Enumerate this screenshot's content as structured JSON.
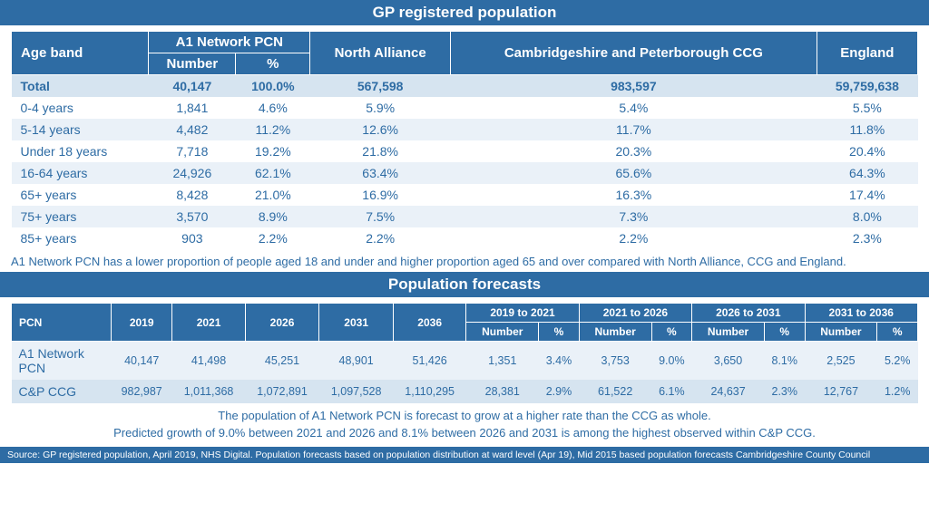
{
  "colors": {
    "primary": "#2e6ca4",
    "row_light": "#eaf1f8",
    "row_dark": "#d6e4f0",
    "white": "#ffffff",
    "text": "#2e6ca4"
  },
  "table1": {
    "title": "GP registered population",
    "headers": {
      "ageband": "Age band",
      "a1": "A1 Network PCN",
      "a1_number": "Number",
      "a1_pct": "%",
      "north": "North Alliance",
      "ccg": "Cambridgeshire and Peterborough CCG",
      "england": "England"
    },
    "rows": [
      {
        "label": "Total",
        "num": "40,147",
        "pct": "100.0%",
        "north": "567,598",
        "ccg": "983,597",
        "eng": "59,759,638",
        "total": true
      },
      {
        "label": "0-4 years",
        "num": "1,841",
        "pct": "4.6%",
        "north": "5.9%",
        "ccg": "5.4%",
        "eng": "5.5%"
      },
      {
        "label": "5-14 years",
        "num": "4,482",
        "pct": "11.2%",
        "north": "12.6%",
        "ccg": "11.7%",
        "eng": "11.8%"
      },
      {
        "label": "Under 18 years",
        "num": "7,718",
        "pct": "19.2%",
        "north": "21.8%",
        "ccg": "20.3%",
        "eng": "20.4%"
      },
      {
        "label": "16-64 years",
        "num": "24,926",
        "pct": "62.1%",
        "north": "63.4%",
        "ccg": "65.6%",
        "eng": "64.3%"
      },
      {
        "label": "65+ years",
        "num": "8,428",
        "pct": "21.0%",
        "north": "16.9%",
        "ccg": "16.3%",
        "eng": "17.4%"
      },
      {
        "label": "75+ years",
        "num": "3,570",
        "pct": "8.9%",
        "north": "7.5%",
        "ccg": "7.3%",
        "eng": "8.0%"
      },
      {
        "label": "85+ years",
        "num": "903",
        "pct": "2.2%",
        "north": "2.2%",
        "ccg": "2.2%",
        "eng": "2.3%"
      }
    ],
    "caption": "A1 Network PCN has a lower proportion of people aged 18 and under and higher proportion aged 65 and over compared with North Alliance, CCG and England."
  },
  "table2": {
    "title": "Population forecasts",
    "headers": {
      "pcn": "PCN",
      "y2019": "2019",
      "y2021": "2021",
      "y2026": "2026",
      "y2031": "2031",
      "y2036": "2036",
      "p1": "2019 to 2021",
      "p2": "2021 to 2026",
      "p3": "2026 to 2031",
      "p4": "2031 to 2036",
      "num": "Number",
      "pct": "%"
    },
    "rows": [
      {
        "label": "A1 Network PCN",
        "y19": "40,147",
        "y21": "41,498",
        "y26": "45,251",
        "y31": "48,901",
        "y36": "51,426",
        "p1n": "1,351",
        "p1p": "3.4%",
        "p2n": "3,753",
        "p2p": "9.0%",
        "p3n": "3,650",
        "p3p": "8.1%",
        "p4n": "2,525",
        "p4p": "5.2%"
      },
      {
        "label": "C&P CCG",
        "y19": "982,987",
        "y21": "1,011,368",
        "y26": "1,072,891",
        "y31": "1,097,528",
        "y36": "1,110,295",
        "p1n": "28,381",
        "p1p": "2.9%",
        "p2n": "61,522",
        "p2p": "6.1%",
        "p3n": "24,637",
        "p3p": "2.3%",
        "p4n": "12,767",
        "p4p": "1.2%"
      }
    ],
    "caption1": "The population of A1 Network PCN is forecast to grow at a higher rate than the CCG as whole.",
    "caption2": "Predicted growth of 9.0% between 2021 and 2026 and 8.1% between 2026 and 2031 is among the highest observed within C&P CCG."
  },
  "source": "Source: GP registered population, April 2019, NHS Digital.  Population forecasts based on population distribution at ward level (Apr 19), Mid 2015 based population forecasts Cambridgeshire County Council"
}
